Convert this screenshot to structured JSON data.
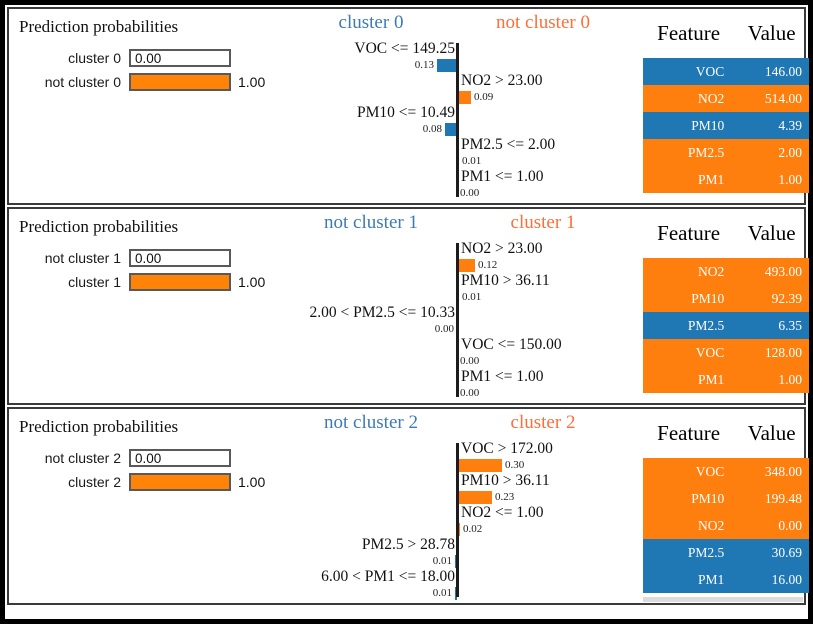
{
  "colors": {
    "blue": "#1f77b4",
    "orange": "#ff7f0e",
    "prob_orange": "#ff8307",
    "header_blue": "#3d7ab5",
    "header_orange": "#ff6d38",
    "axis": "#1c1c1c",
    "prob_border": "#595959",
    "panel_border": "#3a3a3a"
  },
  "chart_data": [
    {
      "type": "bar",
      "title": "Prediction probabilities",
      "legend_left": "cluster 0",
      "legend_right": "not cluster 0",
      "legend_position": "top",
      "axis_range": [
        -0.5,
        0.5
      ],
      "probabilities": [
        {
          "label": "cluster 0",
          "value": "0.00",
          "fill": "none"
        },
        {
          "label": "not cluster 0",
          "value": "1.00",
          "fill": "orange"
        }
      ],
      "features": [
        {
          "label": "VOC <= 149.25",
          "weight": 0.13,
          "weight_label": "0.13",
          "side": "left"
        },
        {
          "label": "NO2 > 23.00",
          "weight": 0.09,
          "weight_label": "0.09",
          "side": "right"
        },
        {
          "label": "PM10 <= 10.49",
          "weight": 0.08,
          "weight_label": "0.08",
          "side": "left"
        },
        {
          "label": "PM2.5 <= 2.00",
          "weight": 0.01,
          "weight_label": "0.01",
          "side": "right"
        },
        {
          "label": "PM1 <= 1.00",
          "weight": 0.0,
          "weight_label": "0.00",
          "side": "right"
        }
      ],
      "table": {
        "headers": [
          "Feature",
          "Value"
        ],
        "rows": [
          {
            "feature": "VOC",
            "value": "146.00",
            "color": "blue"
          },
          {
            "feature": "NO2",
            "value": "514.00",
            "color": "orange"
          },
          {
            "feature": "PM10",
            "value": "4.39",
            "color": "blue"
          },
          {
            "feature": "PM2.5",
            "value": "2.00",
            "color": "orange"
          },
          {
            "feature": "PM1",
            "value": "1.00",
            "color": "orange"
          }
        ]
      }
    },
    {
      "type": "bar",
      "title": "Prediction probabilities",
      "legend_left": "not cluster 1",
      "legend_right": "cluster 1",
      "legend_position": "top",
      "axis_range": [
        -0.5,
        0.5
      ],
      "probabilities": [
        {
          "label": "not cluster 1",
          "value": "0.00",
          "fill": "none"
        },
        {
          "label": "cluster 1",
          "value": "1.00",
          "fill": "orange"
        }
      ],
      "features": [
        {
          "label": "NO2 > 23.00",
          "weight": 0.12,
          "weight_label": "0.12",
          "side": "right"
        },
        {
          "label": "PM10 > 36.11",
          "weight": 0.01,
          "weight_label": "0.01",
          "side": "right"
        },
        {
          "label": "2.00 < PM2.5 <= 10.33",
          "weight": 0.0,
          "weight_label": "0.00",
          "side": "left"
        },
        {
          "label": "VOC <= 150.00",
          "weight": 0.0,
          "weight_label": "0.00",
          "side": "right"
        },
        {
          "label": "PM1 <= 1.00",
          "weight": 0.0,
          "weight_label": "0.00",
          "side": "right"
        }
      ],
      "table": {
        "headers": [
          "Feature",
          "Value"
        ],
        "rows": [
          {
            "feature": "NO2",
            "value": "493.00",
            "color": "orange"
          },
          {
            "feature": "PM10",
            "value": "92.39",
            "color": "orange"
          },
          {
            "feature": "PM2.5",
            "value": "6.35",
            "color": "blue"
          },
          {
            "feature": "VOC",
            "value": "128.00",
            "color": "orange"
          },
          {
            "feature": "PM1",
            "value": "1.00",
            "color": "orange"
          }
        ]
      }
    },
    {
      "type": "bar",
      "title": "Prediction probabilities",
      "legend_left": "not cluster 2",
      "legend_right": "cluster 2",
      "legend_position": "top",
      "axis_range": [
        -0.5,
        0.5
      ],
      "probabilities": [
        {
          "label": "not cluster 2",
          "value": "0.00",
          "fill": "none"
        },
        {
          "label": "cluster 2",
          "value": "1.00",
          "fill": "orange"
        }
      ],
      "features": [
        {
          "label": "VOC > 172.00",
          "weight": 0.3,
          "weight_label": "0.30",
          "side": "right"
        },
        {
          "label": "PM10 > 36.11",
          "weight": 0.23,
          "weight_label": "0.23",
          "side": "right"
        },
        {
          "label": "NO2 <= 1.00",
          "weight": 0.02,
          "weight_label": "0.02",
          "side": "right"
        },
        {
          "label": "PM2.5 > 28.78",
          "weight": 0.01,
          "weight_label": "0.01",
          "side": "left"
        },
        {
          "label": "6.00 < PM1 <= 18.00",
          "weight": 0.01,
          "weight_label": "0.01",
          "side": "left"
        }
      ],
      "table": {
        "headers": [
          "Feature",
          "Value"
        ],
        "rows": [
          {
            "feature": "VOC",
            "value": "348.00",
            "color": "orange"
          },
          {
            "feature": "PM10",
            "value": "199.48",
            "color": "orange"
          },
          {
            "feature": "NO2",
            "value": "0.00",
            "color": "orange"
          },
          {
            "feature": "PM2.5",
            "value": "30.69",
            "color": "blue"
          },
          {
            "feature": "PM1",
            "value": "16.00",
            "color": "blue"
          }
        ]
      }
    }
  ]
}
